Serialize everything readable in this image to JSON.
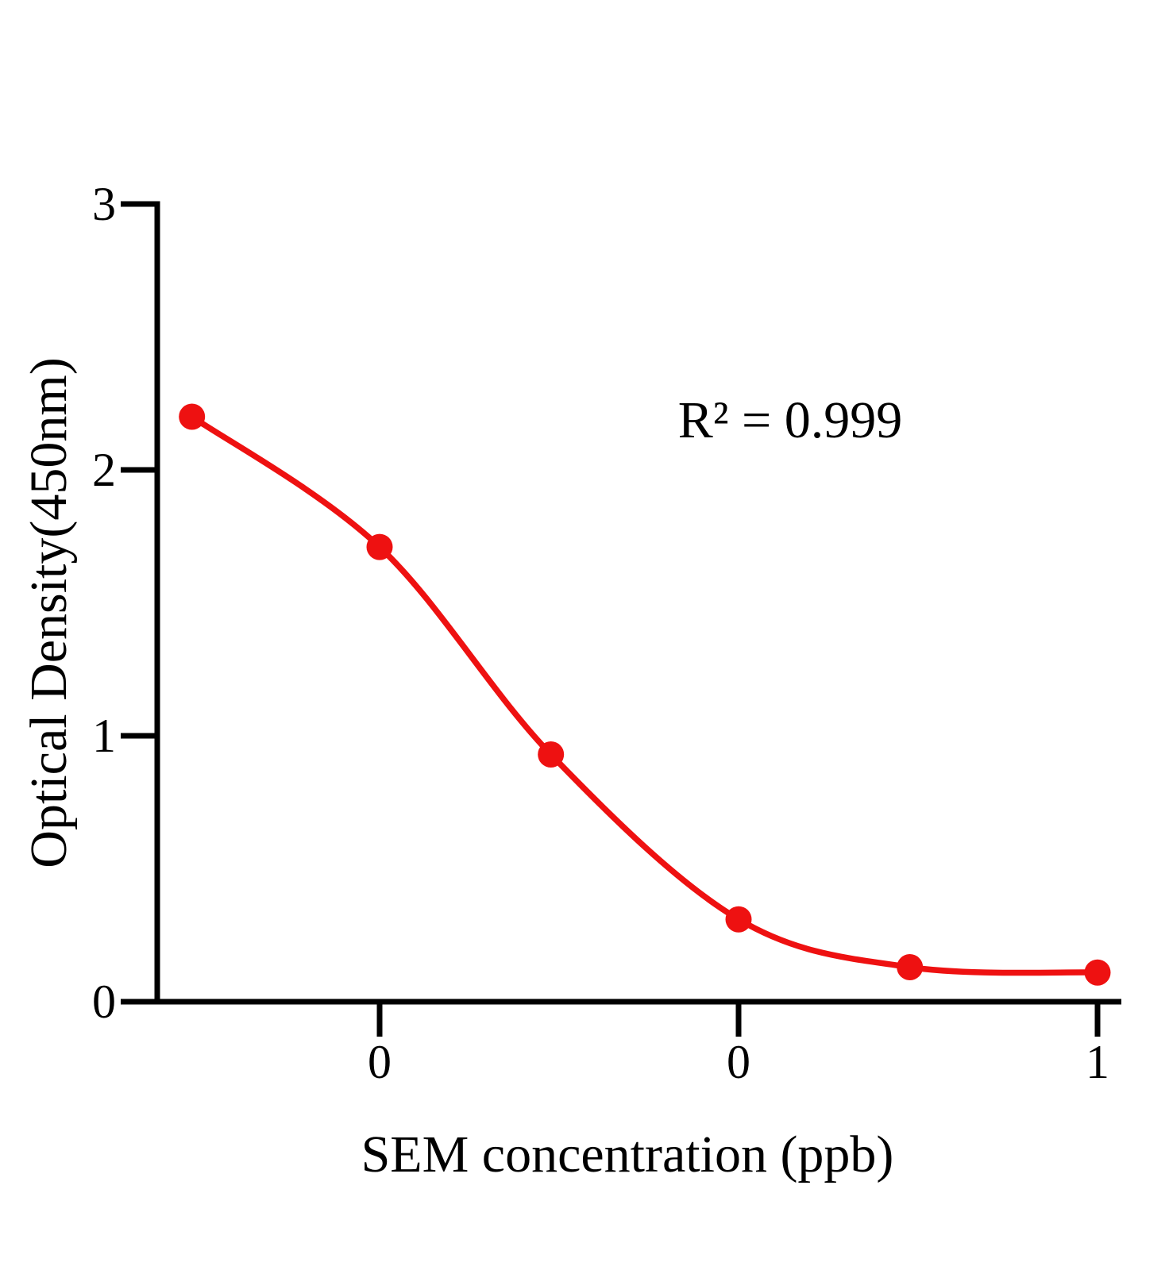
{
  "page": {
    "background_color": "#ffffff"
  },
  "chart_data": {
    "type": "line",
    "title": "",
    "xlabel": "SEM concentration (ppb)",
    "ylabel": "Optical Density(450nm)",
    "annotation": "R² = 0.999",
    "x_scale": "log",
    "x": [
      0.003,
      0.01,
      0.03,
      0.1,
      0.3,
      1
    ],
    "y": [
      2.2,
      1.71,
      0.93,
      0.31,
      0.13,
      0.11
    ],
    "x_ticks": {
      "values": [
        0.01,
        0.1,
        1
      ],
      "labels": [
        "0",
        "0",
        "1"
      ]
    },
    "y_ticks": {
      "values": [
        0,
        1,
        2,
        3
      ],
      "labels": [
        "0",
        "1",
        "2",
        "3"
      ]
    },
    "xlim": [
      0.0024,
      1.12
    ],
    "ylim": [
      0,
      3
    ],
    "grid": false,
    "legend": false,
    "line_color": "#ee1111",
    "marker_color": "#ee1111",
    "axis_color": "#000000"
  }
}
